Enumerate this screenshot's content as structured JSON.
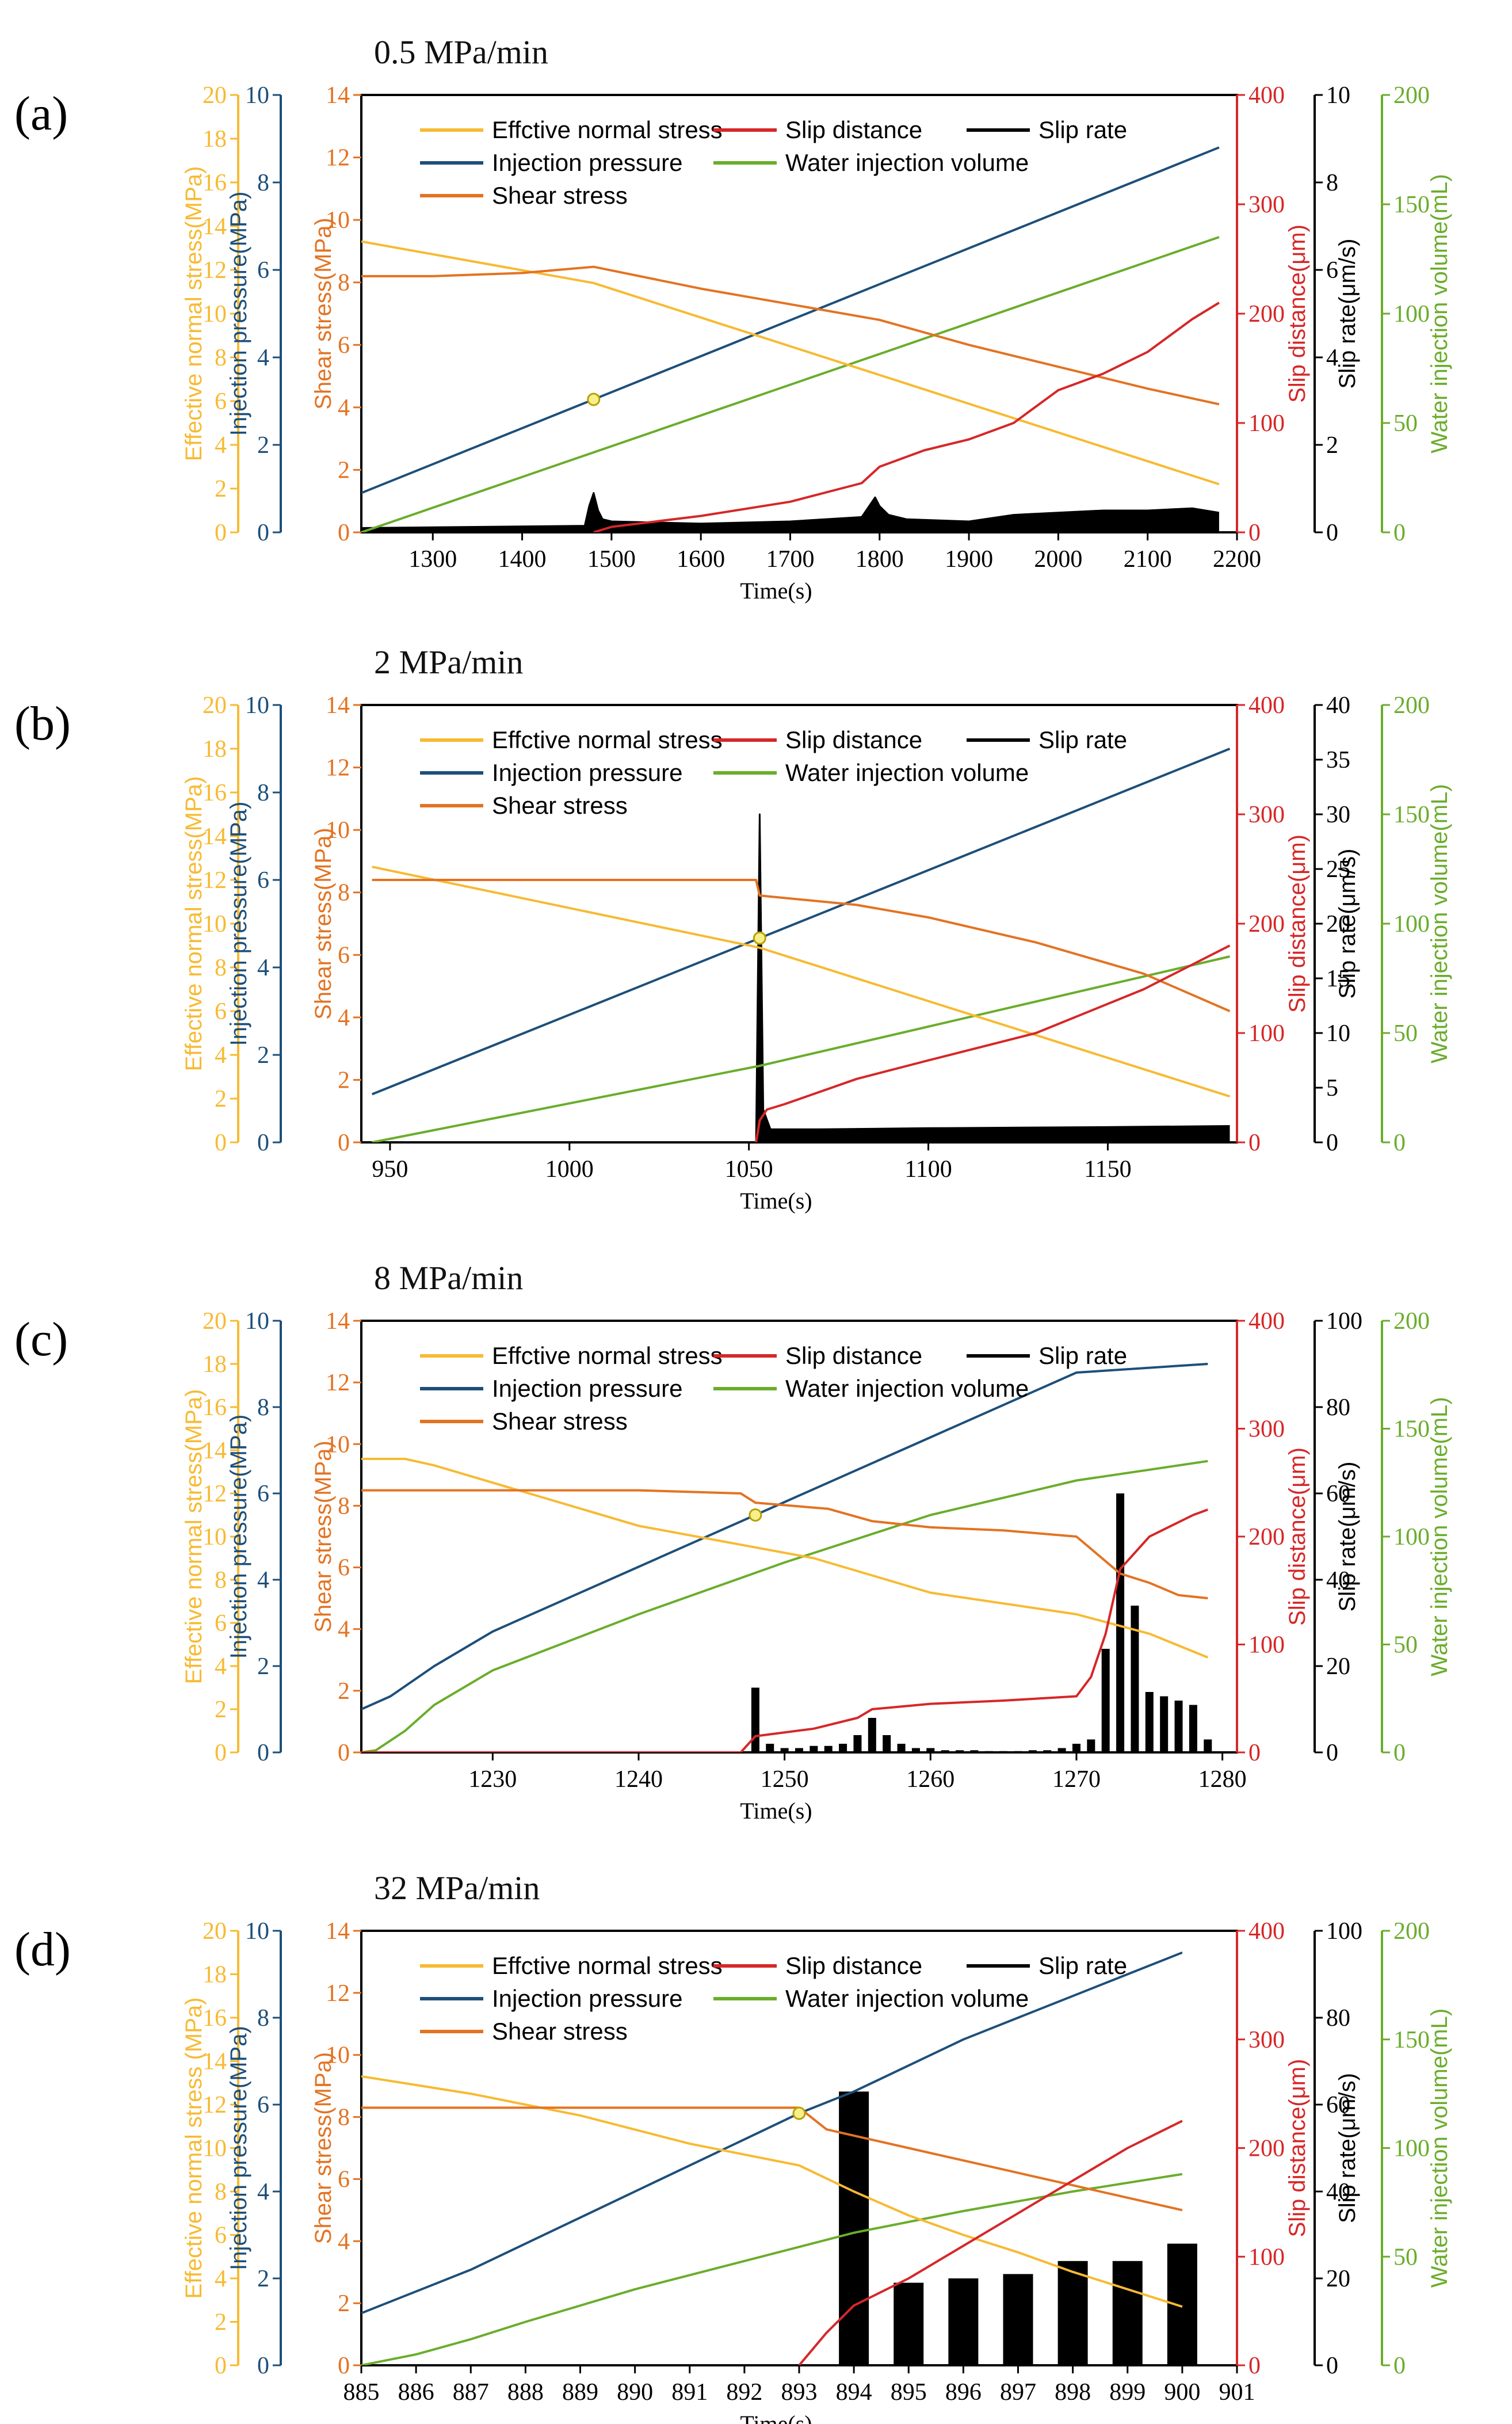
{
  "colors": {
    "effective_normal_stress": "#F7BA32",
    "injection_pressure": "#1D4F7A",
    "shear_stress": "#E37322",
    "slip_distance": "#D62728",
    "slip_rate": "#000000",
    "water_injection_volume": "#6AAD2C"
  },
  "axis_titles": {
    "effective_normal_stress": "Effective normal stress(MPa)",
    "effective_normal_stress_d": "Effective normal stress (MPa)",
    "injection_pressure": "Injection pressure(MPa)",
    "shear_stress": "Shear stress(MPa)",
    "slip_distance": "Slip distance(μm)",
    "slip_rate": "Slip rate(μm/s)",
    "water_injection_volume": "Water injection volume(mL)",
    "time": "Time(s)"
  },
  "legend": {
    "effective_normal_stress": "Effctive normal stress",
    "slip_distance": "Slip distance",
    "slip_rate": "Slip rate",
    "injection_pressure": "Injection pressure",
    "water_injection_volume": "Water injection volume",
    "shear_stress": "Shear stress"
  },
  "chart_data": [
    {
      "type": "line",
      "panel_label": "(a)",
      "title": "0.5 MPa/min",
      "xlabel": "Time(s)",
      "xlim": [
        1220,
        2200
      ],
      "xticks": [
        1300,
        1400,
        1500,
        1600,
        1700,
        1800,
        1900,
        2000,
        2100,
        2200
      ],
      "marker_time": 1480,
      "axes": {
        "effective_normal_stress": {
          "ylim": [
            0,
            20
          ],
          "ticks": [
            0,
            2,
            4,
            6,
            8,
            10,
            12,
            14,
            16,
            18,
            20
          ]
        },
        "injection_pressure": {
          "ylim": [
            0,
            10
          ],
          "ticks": [
            0,
            2,
            4,
            6,
            8,
            10
          ]
        },
        "shear_stress": {
          "ylim": [
            0,
            14
          ],
          "ticks": [
            0,
            2,
            4,
            6,
            8,
            10,
            12,
            14
          ]
        },
        "slip_distance": {
          "ylim": [
            0,
            400
          ],
          "ticks": [
            0,
            100,
            200,
            300,
            400
          ]
        },
        "slip_rate": {
          "ylim": [
            0,
            10
          ],
          "ticks": [
            0,
            2,
            4,
            6,
            8,
            10
          ]
        },
        "water_injection_volume": {
          "ylim": [
            0,
            200
          ],
          "ticks": [
            0,
            50,
            100,
            150,
            200
          ]
        }
      },
      "series": [
        {
          "key": "injection_pressure",
          "x": [
            1220,
            2180
          ],
          "y": [
            0.9,
            8.8
          ]
        },
        {
          "key": "water_injection_volume",
          "x": [
            1220,
            2180
          ],
          "y": [
            0,
            135
          ]
        },
        {
          "key": "effective_normal_stress",
          "x": [
            1220,
            1480,
            2180
          ],
          "y": [
            13.3,
            11.4,
            2.2
          ]
        },
        {
          "key": "shear_stress",
          "x": [
            1220,
            1300,
            1400,
            1480,
            1600,
            1700,
            1800,
            1900,
            2000,
            2100,
            2180
          ],
          "y": [
            8.2,
            8.2,
            8.3,
            8.5,
            7.8,
            7.3,
            6.8,
            6.0,
            5.3,
            4.6,
            4.1
          ]
        },
        {
          "key": "slip_distance",
          "x": [
            1480,
            1500,
            1600,
            1700,
            1780,
            1800,
            1850,
            1900,
            1950,
            2000,
            2050,
            2100,
            2150,
            2180
          ],
          "y": [
            0,
            5,
            15,
            28,
            45,
            60,
            75,
            85,
            100,
            130,
            145,
            165,
            195,
            210
          ]
        },
        {
          "key": "slip_rate",
          "x": [
            1220,
            1470,
            1475,
            1480,
            1485,
            1490,
            1500,
            1600,
            1700,
            1780,
            1795,
            1800,
            1810,
            1830,
            1900,
            1950,
            2000,
            2050,
            2100,
            2150,
            2180
          ],
          "y": [
            0.1,
            0.15,
            0.6,
            0.9,
            0.5,
            0.3,
            0.25,
            0.2,
            0.25,
            0.35,
            0.8,
            0.6,
            0.4,
            0.3,
            0.25,
            0.4,
            0.45,
            0.5,
            0.5,
            0.55,
            0.45
          ]
        }
      ]
    },
    {
      "type": "line",
      "panel_label": "(b)",
      "title": "2 MPa/min",
      "xlabel": "Time(s)",
      "xlim": [
        942,
        1186
      ],
      "xticks": [
        950,
        1000,
        1050,
        1100,
        1150
      ],
      "marker_time": 1053,
      "axes": {
        "effective_normal_stress": {
          "ylim": [
            0,
            20
          ],
          "ticks": [
            0,
            2,
            4,
            6,
            8,
            10,
            12,
            14,
            16,
            18,
            20
          ]
        },
        "injection_pressure": {
          "ylim": [
            0,
            10
          ],
          "ticks": [
            0,
            2,
            4,
            6,
            8,
            10
          ]
        },
        "shear_stress": {
          "ylim": [
            0,
            14
          ],
          "ticks": [
            0,
            2,
            4,
            6,
            8,
            10,
            12,
            14
          ]
        },
        "slip_distance": {
          "ylim": [
            0,
            400
          ],
          "ticks": [
            0,
            100,
            200,
            300,
            400
          ]
        },
        "slip_rate": {
          "ylim": [
            0,
            40
          ],
          "ticks": [
            0,
            5,
            10,
            15,
            20,
            25,
            30,
            35,
            40
          ]
        },
        "water_injection_volume": {
          "ylim": [
            0,
            200
          ],
          "ticks": [
            0,
            50,
            100,
            150,
            200
          ]
        }
      },
      "series": [
        {
          "key": "injection_pressure",
          "x": [
            945,
            1184
          ],
          "y": [
            1.1,
            9.0
          ]
        },
        {
          "key": "water_injection_volume",
          "x": [
            945,
            1053,
            1184
          ],
          "y": [
            0,
            35,
            85
          ]
        },
        {
          "key": "effective_normal_stress",
          "x": [
            945,
            1053,
            1184
          ],
          "y": [
            12.6,
            8.9,
            2.1
          ]
        },
        {
          "key": "shear_stress",
          "x": [
            945,
            1000,
            1052,
            1053,
            1080,
            1100,
            1130,
            1160,
            1184
          ],
          "y": [
            8.4,
            8.4,
            8.4,
            7.9,
            7.6,
            7.2,
            6.4,
            5.4,
            4.2
          ]
        },
        {
          "key": "slip_distance",
          "x": [
            1052,
            1053,
            1055,
            1060,
            1080,
            1100,
            1130,
            1160,
            1184
          ],
          "y": [
            0,
            20,
            30,
            35,
            58,
            75,
            100,
            140,
            180
          ]
        },
        {
          "key": "slip_rate",
          "x": [
            945,
            1052,
            1053,
            1054,
            1056,
            1070,
            1100,
            1150,
            1184
          ],
          "y": [
            0,
            0,
            30,
            3,
            1.2,
            1.2,
            1.3,
            1.4,
            1.5
          ]
        }
      ]
    },
    {
      "type": "line",
      "panel_label": "(c)",
      "title": "8 MPa/min",
      "xlabel": "Time(s)",
      "xlim": [
        1221,
        1281
      ],
      "xticks": [
        1230,
        1240,
        1250,
        1260,
        1270,
        1280
      ],
      "marker_time": 1248,
      "axes": {
        "effective_normal_stress": {
          "ylim": [
            0,
            20
          ],
          "ticks": [
            0,
            2,
            4,
            6,
            8,
            10,
            12,
            14,
            16,
            18,
            20
          ]
        },
        "injection_pressure": {
          "ylim": [
            0,
            10
          ],
          "ticks": [
            0,
            2,
            4,
            6,
            8,
            10
          ]
        },
        "shear_stress": {
          "ylim": [
            0,
            14
          ],
          "ticks": [
            0,
            2,
            4,
            6,
            8,
            10,
            12,
            14
          ]
        },
        "slip_distance": {
          "ylim": [
            0,
            400
          ],
          "ticks": [
            0,
            100,
            200,
            300,
            400
          ]
        },
        "slip_rate": {
          "ylim": [
            0,
            100
          ],
          "ticks": [
            0,
            20,
            40,
            60,
            80,
            100
          ]
        },
        "water_injection_volume": {
          "ylim": [
            0,
            200
          ],
          "ticks": [
            0,
            50,
            100,
            150,
            200
          ]
        }
      },
      "series": [
        {
          "key": "injection_pressure",
          "x": [
            1221,
            1223,
            1226,
            1230,
            1240,
            1250,
            1260,
            1270,
            1279
          ],
          "y": [
            1.0,
            1.3,
            2.0,
            2.8,
            4.3,
            5.8,
            7.3,
            8.8,
            9.0
          ]
        },
        {
          "key": "water_injection_volume",
          "x": [
            1221,
            1222,
            1224,
            1226,
            1230,
            1240,
            1250,
            1260,
            1270,
            1279
          ],
          "y": [
            0,
            1,
            10,
            22,
            38,
            64,
            88,
            110,
            126,
            135
          ]
        },
        {
          "key": "effective_normal_stress",
          "x": [
            1221,
            1224,
            1226,
            1230,
            1240,
            1248,
            1252,
            1256,
            1260,
            1270,
            1275,
            1279
          ],
          "y": [
            13.6,
            13.6,
            13.3,
            12.5,
            10.5,
            9.5,
            9.0,
            8.2,
            7.4,
            6.4,
            5.5,
            4.4
          ]
        },
        {
          "key": "shear_stress",
          "x": [
            1221,
            1230,
            1240,
            1247,
            1248,
            1253,
            1256,
            1260,
            1265,
            1270,
            1271,
            1273,
            1275,
            1277,
            1279
          ],
          "y": [
            8.5,
            8.5,
            8.5,
            8.4,
            8.1,
            7.9,
            7.5,
            7.3,
            7.2,
            7.0,
            6.6,
            5.8,
            5.5,
            5.1,
            5.0
          ]
        },
        {
          "key": "slip_distance",
          "x": [
            1221,
            1247,
            1248,
            1252,
            1255,
            1256,
            1260,
            1265,
            1270,
            1271,
            1272,
            1273,
            1275,
            1278,
            1279
          ],
          "y": [
            0,
            0,
            15,
            22,
            32,
            40,
            45,
            48,
            52,
            70,
            110,
            170,
            200,
            220,
            225
          ]
        },
        {
          "key": "slip_rate",
          "bars": true,
          "x": [
            1248,
            1249,
            1250,
            1251,
            1252,
            1253,
            1254,
            1255,
            1256,
            1257,
            1258,
            1259,
            1260,
            1261,
            1262,
            1263,
            1264,
            1265,
            1266,
            1267,
            1268,
            1269,
            1270,
            1271,
            1272,
            1273,
            1274,
            1275,
            1276,
            1277,
            1278,
            1279
          ],
          "y": [
            15,
            2,
            1,
            1,
            1.5,
            1.5,
            2,
            4,
            8,
            4,
            2,
            1,
            1,
            0.5,
            0.5,
            0.5,
            0.3,
            0.3,
            0.3,
            0.5,
            0.5,
            1,
            2,
            3,
            24,
            60,
            34,
            14,
            13,
            12,
            11,
            3
          ]
        }
      ]
    },
    {
      "type": "line",
      "panel_label": "(d)",
      "title": "32 MPa/min",
      "xlabel": "Time(s)",
      "xlim": [
        885,
        901
      ],
      "xticks": [
        885,
        886,
        887,
        888,
        889,
        890,
        891,
        892,
        893,
        894,
        895,
        896,
        897,
        898,
        899,
        900,
        901
      ],
      "marker_time": 893,
      "axes": {
        "effective_normal_stress": {
          "ylim": [
            0,
            20
          ],
          "ticks": [
            0,
            2,
            4,
            6,
            8,
            10,
            12,
            14,
            16,
            18,
            20
          ]
        },
        "injection_pressure": {
          "ylim": [
            0,
            10
          ],
          "ticks": [
            0,
            2,
            4,
            6,
            8,
            10
          ]
        },
        "shear_stress": {
          "ylim": [
            0,
            14
          ],
          "ticks": [
            0,
            2,
            4,
            6,
            8,
            10,
            12,
            14
          ]
        },
        "slip_distance": {
          "ylim": [
            0,
            400
          ],
          "ticks": [
            0,
            100,
            200,
            300,
            400
          ]
        },
        "slip_rate": {
          "ylim": [
            0,
            100
          ],
          "ticks": [
            0,
            20,
            40,
            60,
            80,
            100
          ]
        },
        "water_injection_volume": {
          "ylim": [
            0,
            200
          ],
          "ticks": [
            0,
            50,
            100,
            150,
            200
          ]
        }
      },
      "series": [
        {
          "key": "injection_pressure",
          "x": [
            885,
            886,
            887,
            888,
            889,
            890,
            891,
            892,
            893,
            894,
            895,
            896,
            897,
            898,
            899,
            900
          ],
          "y": [
            1.2,
            1.7,
            2.2,
            2.8,
            3.4,
            4.0,
            4.6,
            5.2,
            5.8,
            6.3,
            6.9,
            7.5,
            8.0,
            8.5,
            9.0,
            9.5
          ]
        },
        {
          "key": "water_injection_volume",
          "x": [
            885,
            886,
            887,
            888,
            890,
            892,
            894,
            896,
            898,
            900
          ],
          "y": [
            0,
            5,
            12,
            20,
            35,
            48,
            61,
            71,
            80,
            88
          ]
        },
        {
          "key": "effective_normal_stress",
          "x": [
            885,
            887,
            889,
            891,
            893,
            894,
            895,
            896,
            897,
            898,
            899,
            900
          ],
          "y": [
            13.3,
            12.5,
            11.5,
            10.2,
            9.2,
            8.0,
            6.9,
            6.0,
            5.2,
            4.3,
            3.5,
            2.7
          ]
        },
        {
          "key": "shear_stress",
          "x": [
            885,
            887,
            889,
            891,
            893,
            893.5,
            894,
            895,
            896,
            897,
            898,
            899,
            900
          ],
          "y": [
            8.3,
            8.3,
            8.3,
            8.3,
            8.3,
            7.6,
            7.4,
            7.0,
            6.6,
            6.2,
            5.8,
            5.4,
            5.0
          ]
        },
        {
          "key": "slip_distance",
          "x": [
            893,
            893.5,
            894,
            895,
            896,
            897,
            898,
            899,
            900
          ],
          "y": [
            0,
            30,
            55,
            80,
            110,
            140,
            170,
            200,
            225
          ]
        },
        {
          "key": "slip_rate",
          "bars": true,
          "x": [
            894,
            895,
            896,
            897,
            898,
            899,
            900
          ],
          "y": [
            63,
            19,
            20,
            21,
            24,
            24,
            28
          ]
        }
      ]
    }
  ]
}
